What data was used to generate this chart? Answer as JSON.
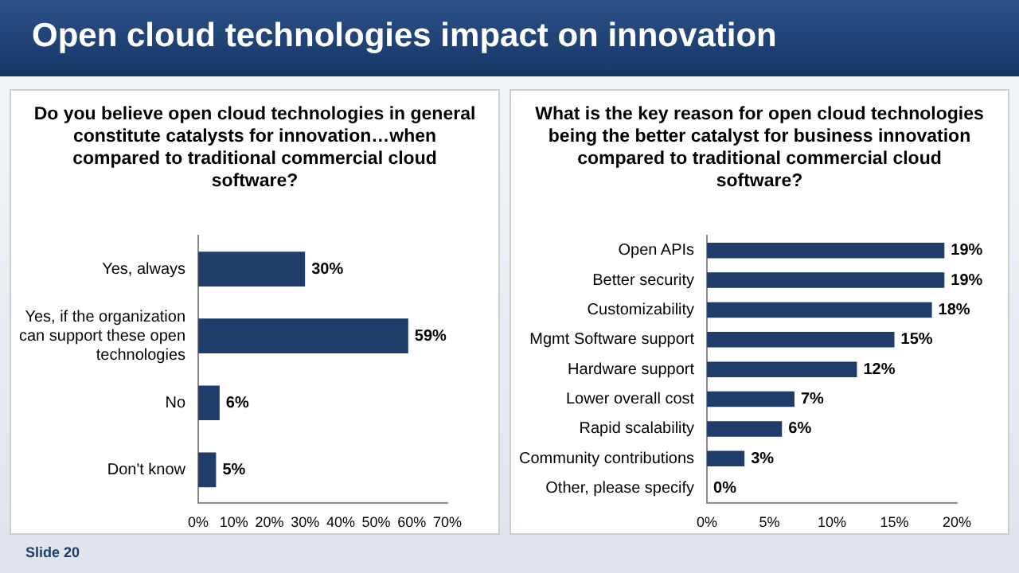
{
  "chart_data": [
    {
      "type": "bar",
      "orientation": "horizontal",
      "title": "Do you believe open cloud technologies in general constitute catalysts for innovation…when compared to traditional commercial cloud software?",
      "categories": [
        "Yes, always",
        "Yes, if the organization can support these open technologies",
        "No",
        "Don't know"
      ],
      "values": [
        30,
        59,
        6,
        5
      ],
      "value_labels": [
        "30%",
        "59%",
        "6%",
        "5%"
      ],
      "color": "#1f3d6b",
      "xlim": [
        0,
        70
      ],
      "xticks": [
        {
          "value": 0,
          "label": "0%"
        },
        {
          "value": 10,
          "label": "10%"
        },
        {
          "value": 20,
          "label": "20%"
        },
        {
          "value": 30,
          "label": "30%"
        },
        {
          "value": 40,
          "label": "40%"
        },
        {
          "value": 50,
          "label": "50%"
        },
        {
          "value": 60,
          "label": "60%"
        },
        {
          "value": 70,
          "label": "70%"
        }
      ],
      "grid": false,
      "legend": false,
      "annotations": [
        "Open cloud technologies impact on innovation",
        "Slide 20"
      ]
    },
    {
      "type": "bar",
      "orientation": "horizontal",
      "title": "What is the key reason for open cloud technologies being the better catalyst for business innovation compared to traditional commercial cloud software?",
      "categories": [
        "Open APIs",
        "Better security",
        "Customizability",
        "Mgmt Software support",
        "Hardware support",
        "Lower overall cost",
        "Rapid scalability",
        "Community contributions",
        "Other, please specify"
      ],
      "values": [
        19,
        19,
        18,
        15,
        12,
        7,
        6,
        3,
        0
      ],
      "value_labels": [
        "19%",
        "19%",
        "18%",
        "15%",
        "12%",
        "7%",
        "6%",
        "3%",
        "0%"
      ],
      "color": "#1f3d6b",
      "xlim": [
        0,
        20
      ],
      "xticks": [
        {
          "value": 0,
          "label": "0%"
        },
        {
          "value": 5,
          "label": "5%"
        },
        {
          "value": 10,
          "label": "10%"
        },
        {
          "value": 15,
          "label": "15%"
        },
        {
          "value": 20,
          "label": "20%"
        }
      ],
      "grid": false,
      "legend": false
    }
  ]
}
